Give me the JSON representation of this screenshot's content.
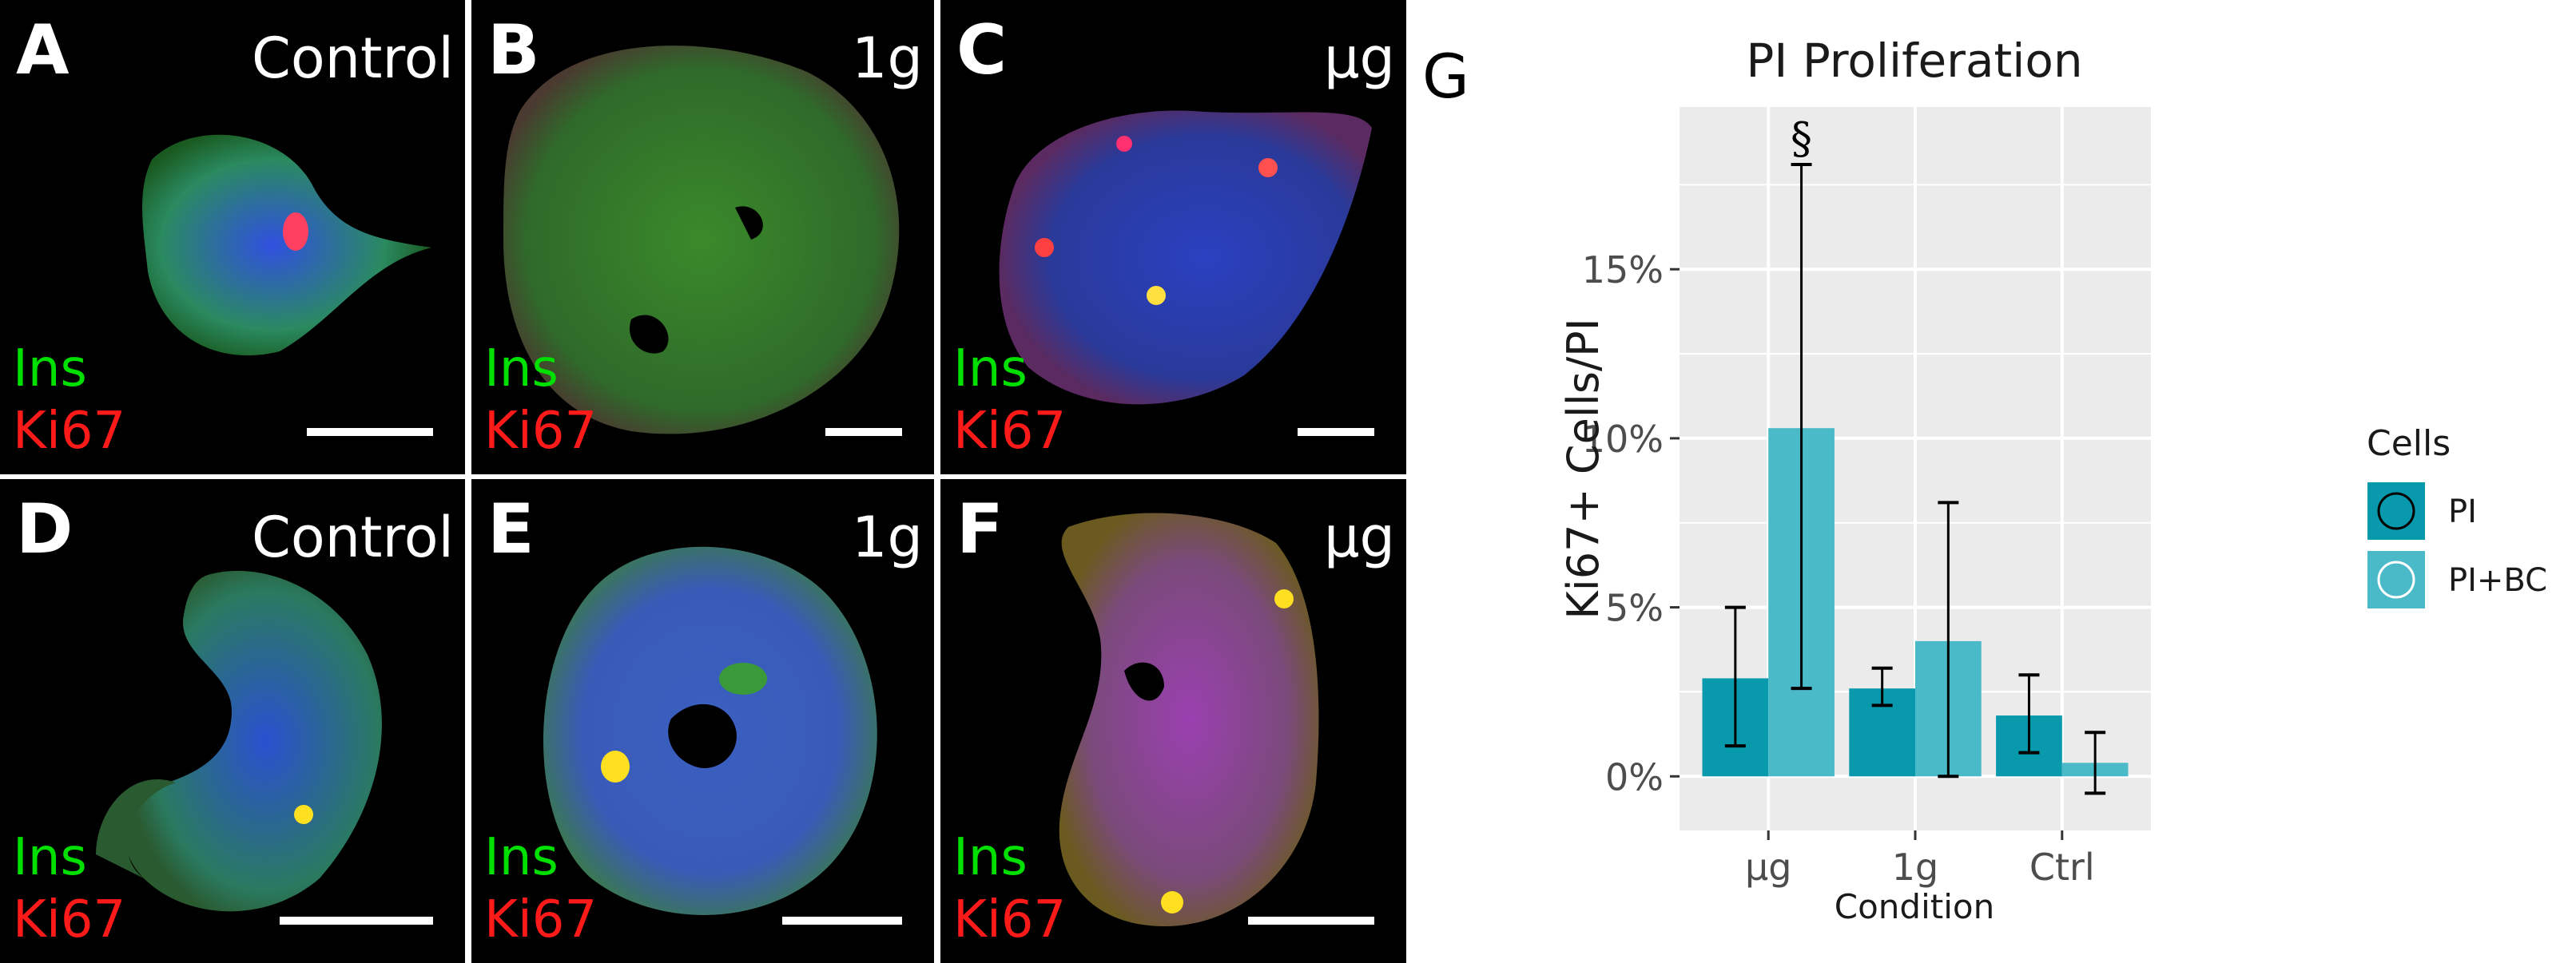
{
  "panels": [
    {
      "letter": "A",
      "condition": "Control",
      "ins": "Ins",
      "ki67": "Ki67"
    },
    {
      "letter": "B",
      "condition": "1g",
      "ins": "Ins",
      "ki67": "Ki67"
    },
    {
      "letter": "C",
      "condition": "µg",
      "ins": "Ins",
      "ki67": "Ki67"
    },
    {
      "letter": "D",
      "condition": "Control",
      "ins": "Ins",
      "ki67": "Ki67"
    },
    {
      "letter": "E",
      "condition": "1g",
      "ins": "Ins",
      "ki67": "Ki67"
    },
    {
      "letter": "F",
      "condition": "µg",
      "ins": "Ins",
      "ki67": "Ki67"
    }
  ],
  "colors": {
    "ins": "#00e000",
    "ki67": "#ff1a1a",
    "pi": "#0899ac",
    "pibc": "#4ab9c8",
    "plot_bg": "#ebebeb",
    "grid": "#ffffff"
  },
  "chart_panel_letter": "G",
  "chart_data": {
    "type": "bar",
    "title": "PI Proliferation",
    "xlabel": "Condition",
    "ylabel": "Ki67+ Cells/PI",
    "categories": [
      "µg",
      "1g",
      "Ctrl"
    ],
    "ylim": [
      -0.016,
      0.198
    ],
    "yticks": [
      0,
      0.05,
      0.1,
      0.15
    ],
    "ytick_labels": [
      "0%",
      "5%",
      "10%",
      "15%"
    ],
    "series": [
      {
        "name": "PI",
        "values": [
          0.029,
          0.026,
          0.018
        ],
        "err_low": [
          0.009,
          0.021,
          0.007
        ],
        "err_high": [
          0.05,
          0.032,
          0.03
        ]
      },
      {
        "name": "PI+BC",
        "values": [
          0.103,
          0.04,
          0.004
        ],
        "err_low": [
          0.026,
          0.0,
          -0.005
        ],
        "err_high": [
          0.181,
          0.081,
          0.013
        ]
      }
    ],
    "annotation": {
      "text": "§",
      "category": "µg",
      "series": "PI+BC"
    },
    "legend": {
      "title": "Cells",
      "position": "right",
      "entries": [
        "PI",
        "PI+BC"
      ]
    }
  }
}
